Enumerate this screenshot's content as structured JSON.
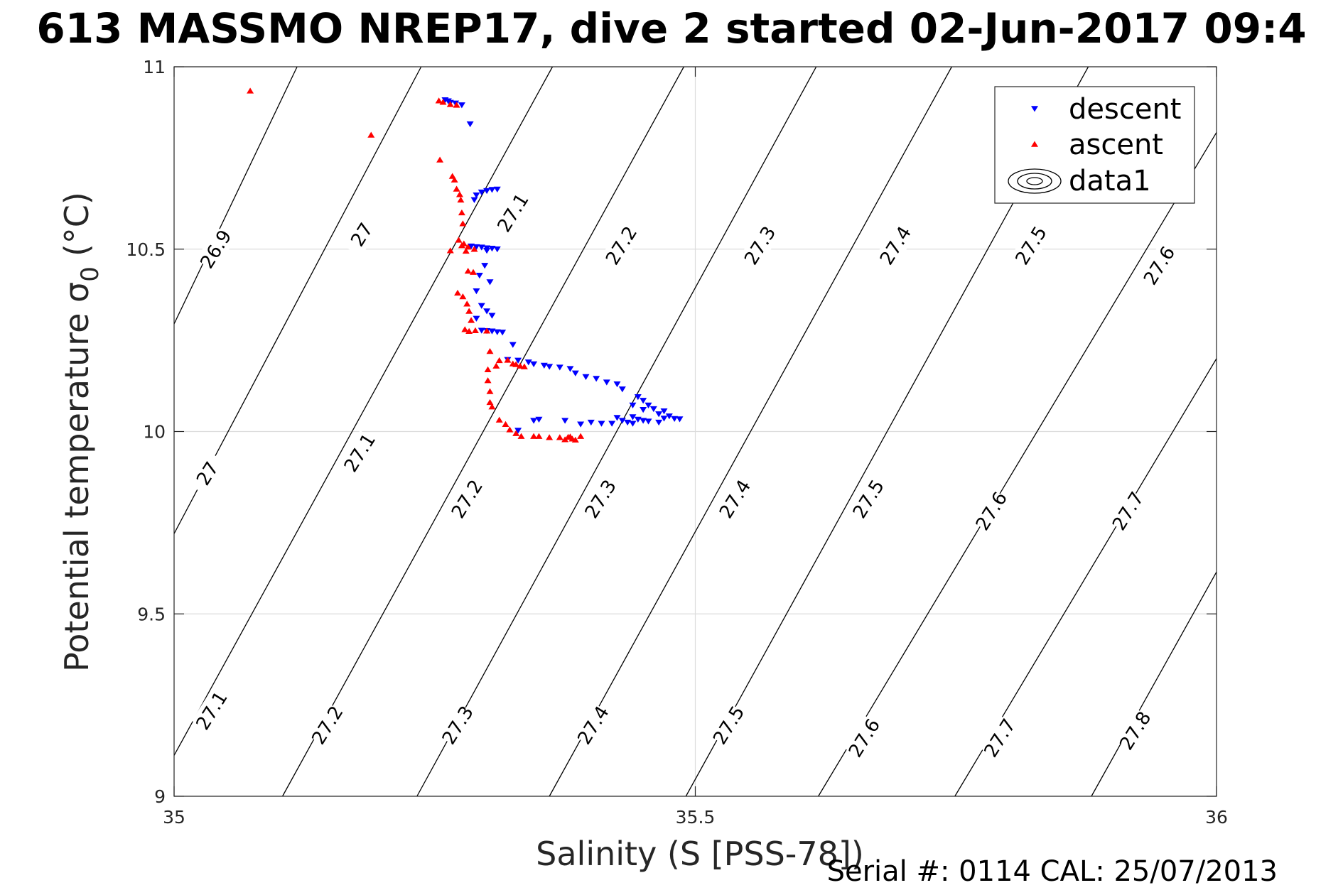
{
  "title": "613 MASSMO NREP17, dive 2 started 02-Jun-2017 09:4",
  "footer": "Serial #: 0114  CAL: 25/07/2013",
  "colors": {
    "descent": "#0000ff",
    "ascent": "#ff0000",
    "grid": "#dcdcdc",
    "axis": "#262626",
    "contour": "#000000"
  },
  "chart_data": {
    "type": "scatter",
    "title": "613 MASSMO NREP17, dive 2 started 02-Jun-2017 09:4",
    "xlabel": "Salinity (S [PSS-78])",
    "ylabel": "Potential temperature σ",
    "ylabel_subscript": "0",
    "ylabel_unit": "(°C)",
    "xlim": [
      35,
      36
    ],
    "ylim": [
      9,
      11
    ],
    "xticks": [
      35,
      35.5,
      36
    ],
    "xtick_labels": [
      "35",
      "35.5",
      "36"
    ],
    "yticks": [
      9,
      9.5,
      10,
      10.5,
      11
    ],
    "ytick_labels": [
      "9",
      "9.5",
      "10",
      "10.5",
      "11"
    ],
    "grid": true,
    "legend_position": "top-right",
    "legend": [
      "descent",
      "ascent",
      "data1"
    ],
    "series": [
      {
        "name": "descent",
        "marker": "triangle-down",
        "points": [
          [
            35.26,
            10.909
          ],
          [
            35.263,
            10.906
          ],
          [
            35.265,
            10.902
          ],
          [
            35.27,
            10.9
          ],
          [
            35.276,
            10.895
          ],
          [
            35.284,
            10.843
          ],
          [
            35.288,
            10.635
          ],
          [
            35.29,
            10.648
          ],
          [
            35.295,
            10.656
          ],
          [
            35.3,
            10.66
          ],
          [
            35.305,
            10.663
          ],
          [
            35.31,
            10.664
          ],
          [
            35.285,
            10.508
          ],
          [
            35.29,
            10.506
          ],
          [
            35.295,
            10.505
          ],
          [
            35.3,
            10.503
          ],
          [
            35.305,
            10.502
          ],
          [
            35.31,
            10.5
          ],
          [
            35.3,
            10.496
          ],
          [
            35.293,
            10.428
          ],
          [
            35.298,
            10.455
          ],
          [
            35.303,
            10.41
          ],
          [
            35.29,
            10.385
          ],
          [
            35.295,
            10.345
          ],
          [
            35.3,
            10.33
          ],
          [
            35.305,
            10.318
          ],
          [
            35.29,
            10.31
          ],
          [
            35.295,
            10.277
          ],
          [
            35.3,
            10.276
          ],
          [
            35.305,
            10.275
          ],
          [
            35.31,
            10.273
          ],
          [
            35.315,
            10.272
          ],
          [
            35.325,
            10.238
          ],
          [
            35.32,
            10.197
          ],
          [
            35.33,
            10.195
          ],
          [
            35.34,
            10.19
          ],
          [
            35.345,
            10.185
          ],
          [
            35.355,
            10.181
          ],
          [
            35.36,
            10.178
          ],
          [
            35.37,
            10.176
          ],
          [
            35.38,
            10.172
          ],
          [
            35.385,
            10.16
          ],
          [
            35.395,
            10.15
          ],
          [
            35.405,
            10.145
          ],
          [
            35.415,
            10.135
          ],
          [
            35.425,
            10.13
          ],
          [
            35.43,
            10.116
          ],
          [
            35.445,
            10.095
          ],
          [
            35.45,
            10.085
          ],
          [
            35.44,
            10.072
          ],
          [
            35.455,
            10.072
          ],
          [
            35.46,
            10.062
          ],
          [
            35.45,
            10.06
          ],
          [
            35.47,
            10.056
          ],
          [
            35.465,
            10.048
          ],
          [
            35.475,
            10.042
          ],
          [
            35.47,
            10.036
          ],
          [
            35.48,
            10.035
          ],
          [
            35.485,
            10.034
          ],
          [
            35.44,
            10.04
          ],
          [
            35.445,
            10.033
          ],
          [
            35.45,
            10.03
          ],
          [
            35.455,
            10.028
          ],
          [
            35.465,
            10.025
          ],
          [
            35.425,
            10.038
          ],
          [
            35.43,
            10.03
          ],
          [
            35.435,
            10.025
          ],
          [
            35.44,
            10.022
          ],
          [
            35.42,
            10.022
          ],
          [
            35.41,
            10.022
          ],
          [
            35.4,
            10.025
          ],
          [
            35.39,
            10.02
          ],
          [
            35.375,
            10.03
          ],
          [
            35.35,
            10.033
          ],
          [
            35.345,
            10.03
          ],
          [
            35.33,
            10.003
          ]
        ]
      },
      {
        "name": "ascent",
        "marker": "triangle-up",
        "points": [
          [
            35.073,
            10.934
          ],
          [
            35.189,
            10.813
          ],
          [
            35.254,
            10.907
          ],
          [
            35.258,
            10.903
          ],
          [
            35.265,
            10.897
          ],
          [
            35.271,
            10.895
          ],
          [
            35.255,
            10.745
          ],
          [
            35.267,
            10.7
          ],
          [
            35.269,
            10.69
          ],
          [
            35.271,
            10.665
          ],
          [
            35.274,
            10.65
          ],
          [
            35.275,
            10.635
          ],
          [
            35.276,
            10.6
          ],
          [
            35.277,
            10.57
          ],
          [
            35.273,
            10.525
          ],
          [
            35.278,
            10.515
          ],
          [
            35.276,
            10.51
          ],
          [
            35.282,
            10.506
          ],
          [
            35.265,
            10.496
          ],
          [
            35.288,
            10.5
          ],
          [
            35.28,
            10.495
          ],
          [
            35.282,
            10.44
          ],
          [
            35.287,
            10.437
          ],
          [
            35.272,
            10.38
          ],
          [
            35.277,
            10.37
          ],
          [
            35.281,
            10.35
          ],
          [
            35.283,
            10.33
          ],
          [
            35.285,
            10.305
          ],
          [
            35.279,
            10.28
          ],
          [
            35.283,
            10.275
          ],
          [
            35.289,
            10.277
          ],
          [
            35.3,
            10.276
          ],
          [
            35.303,
            10.22
          ],
          [
            35.301,
            10.17
          ],
          [
            35.309,
            10.18
          ],
          [
            35.312,
            10.195
          ],
          [
            35.32,
            10.196
          ],
          [
            35.325,
            10.186
          ],
          [
            35.328,
            10.184
          ],
          [
            35.332,
            10.18
          ],
          [
            35.336,
            10.178
          ],
          [
            35.301,
            10.14
          ],
          [
            35.303,
            10.11
          ],
          [
            35.303,
            10.08
          ],
          [
            35.305,
            10.068
          ],
          [
            35.312,
            10.032
          ],
          [
            35.318,
            10.02
          ],
          [
            35.322,
            10.005
          ],
          [
            35.328,
            9.995
          ],
          [
            35.333,
            9.987
          ],
          [
            35.345,
            9.987
          ],
          [
            35.35,
            9.987
          ],
          [
            35.36,
            9.984
          ],
          [
            35.37,
            9.984
          ],
          [
            35.375,
            9.978
          ],
          [
            35.378,
            9.985
          ],
          [
            35.38,
            9.986
          ],
          [
            35.382,
            9.98
          ],
          [
            35.385,
            9.977
          ],
          [
            35.39,
            9.987
          ]
        ]
      },
      {
        "name": "data1",
        "type": "contour",
        "quantity": "sigma0",
        "levels": [
          26.9,
          27,
          27.1,
          27.2,
          27.3,
          27.4,
          27.5,
          27.6,
          27.7,
          27.8
        ],
        "isolines": [
          {
            "level": 26.9,
            "from": [
              35.0,
              10.295
            ],
            "to": [
              35.118,
              11.0
            ]
          },
          {
            "level": 27,
            "from": [
              35.0,
              9.72
            ],
            "to": [
              35.237,
              11.0
            ]
          },
          {
            "level": 27.1,
            "from": [
              35.0,
              9.112
            ],
            "to": [
              35.363,
              11.0
            ]
          },
          {
            "level": 27.2,
            "from": [
              35.104,
              9.0
            ],
            "to": [
              35.489,
              11.0
            ]
          },
          {
            "level": 27.3,
            "from": [
              35.233,
              9.0
            ],
            "to": [
              35.616,
              11.0
            ]
          },
          {
            "level": 27.4,
            "from": [
              35.36,
              9.0
            ],
            "to": [
              35.746,
              11.0
            ]
          },
          {
            "level": 27.5,
            "from": [
              35.491,
              9.0
            ],
            "to": [
              35.877,
              11.0
            ]
          },
          {
            "level": 27.6,
            "from": [
              35.618,
              9.0
            ],
            "to": [
              36.0,
              10.82
            ]
          },
          {
            "level": 27.7,
            "from": [
              35.749,
              9.0
            ],
            "to": [
              36.0,
              10.2
            ]
          },
          {
            "level": 27.8,
            "from": [
              35.88,
              9.0
            ],
            "to": [
              36.0,
              9.615
            ]
          }
        ],
        "labels": [
          {
            "text": "26.9",
            "x": 35.04,
            "y": 10.5
          },
          {
            "text": "27",
            "x": 35.18,
            "y": 10.54
          },
          {
            "text": "27.1",
            "x": 35.325,
            "y": 10.6
          },
          {
            "text": "27.2",
            "x": 35.429,
            "y": 10.51
          },
          {
            "text": "27.3",
            "x": 35.562,
            "y": 10.51
          },
          {
            "text": "27.4",
            "x": 35.692,
            "y": 10.51
          },
          {
            "text": "27.5",
            "x": 35.822,
            "y": 10.51
          },
          {
            "text": "27.6",
            "x": 35.945,
            "y": 10.455
          },
          {
            "text": "27",
            "x": 35.032,
            "y": 9.885
          },
          {
            "text": "27.1",
            "x": 35.178,
            "y": 9.942
          },
          {
            "text": "27.2",
            "x": 35.281,
            "y": 9.815
          },
          {
            "text": "27.3",
            "x": 35.409,
            "y": 9.815
          },
          {
            "text": "27.4",
            "x": 35.538,
            "y": 9.815
          },
          {
            "text": "27.5",
            "x": 35.666,
            "y": 9.815
          },
          {
            "text": "27.6",
            "x": 35.784,
            "y": 9.782
          },
          {
            "text": "27.7",
            "x": 35.915,
            "y": 9.782
          },
          {
            "text": "27.1",
            "x": 35.036,
            "y": 9.235
          },
          {
            "text": "27.2",
            "x": 35.147,
            "y": 9.195
          },
          {
            "text": "27.3",
            "x": 35.272,
            "y": 9.195
          },
          {
            "text": "27.4",
            "x": 35.402,
            "y": 9.195
          },
          {
            "text": "27.5",
            "x": 35.532,
            "y": 9.195
          },
          {
            "text": "27.6",
            "x": 35.662,
            "y": 9.16
          },
          {
            "text": "27.7",
            "x": 35.792,
            "y": 9.16
          },
          {
            "text": "27.8",
            "x": 35.922,
            "y": 9.18
          }
        ]
      }
    ]
  }
}
